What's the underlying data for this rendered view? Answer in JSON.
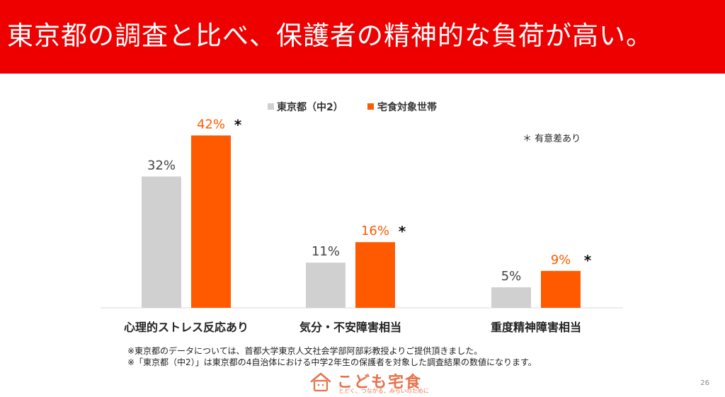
{
  "title": "東京都の調査と比べ、保護者の精神的な負荷が高い。",
  "legend": {
    "series1": "東京都（中2）",
    "series2": "宅食対象世帯"
  },
  "significance_note": "＊ 有意差あり",
  "notes": [
    "※東京都のデータについては、首都大学東京人文社会学部阿部彩教授よりご提供頂きました。",
    "※「東京都（中2）」は東京都の4自治体における中学2年生の保護者を対象した調査結果の数値になります。"
  ],
  "logo": {
    "text": "こども宅食",
    "tagline": "とどく、つながる、みらいのために"
  },
  "page_number": "26",
  "colors": {
    "header": "#ee0000",
    "series1": "#d0d0d0",
    "series2": "#ff5a00",
    "series2_label": "#ff5a00"
  },
  "chart_data": {
    "type": "bar",
    "categories": [
      "心理的ストレス反応あり",
      "気分・不安障害相当",
      "重度精神障害相当"
    ],
    "series": [
      {
        "name": "東京都（中2）",
        "values": [
          32,
          11,
          5
        ],
        "labels": [
          "32%",
          "11%",
          "5%"
        ]
      },
      {
        "name": "宅食対象世帯",
        "values": [
          42,
          16,
          9
        ],
        "labels": [
          "42%",
          "16%",
          "9%"
        ]
      }
    ],
    "significance_marker": "＊",
    "significant": [
      true,
      true,
      true
    ],
    "ylim": [
      0,
      45
    ],
    "legend_position": "top-center",
    "grid": false
  }
}
